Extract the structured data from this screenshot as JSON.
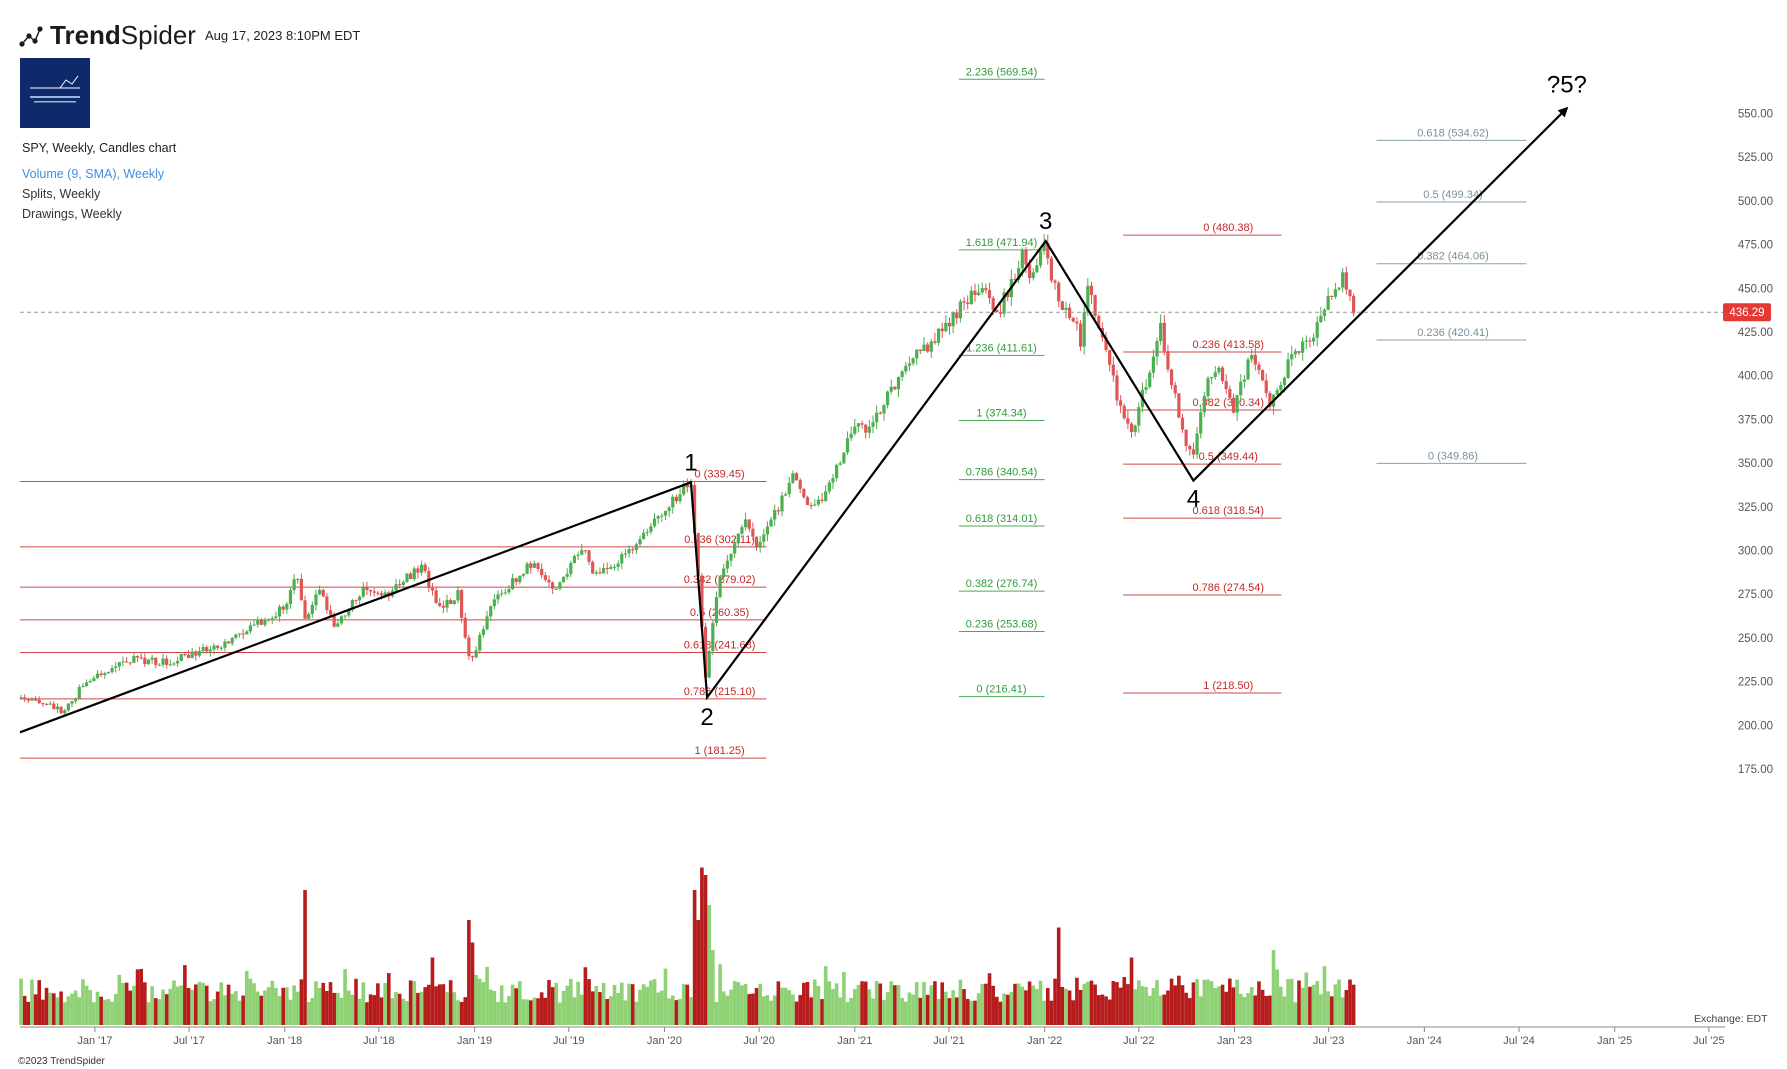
{
  "header": {
    "brand_light": "Trend",
    "brand_bold": "Spider",
    "timestamp": "Aug 17, 2023 8:10PM EDT",
    "symbol_line": "SPY, Weekly, Candles chart",
    "indicators": [
      "Volume (9, SMA), Weekly",
      "Splits, Weekly",
      "Drawings, Weekly"
    ],
    "copyright": "©2023 TrendSpider",
    "exchange": "Exchange: EDT"
  },
  "colors": {
    "up": "#4caf50",
    "down": "#e05555",
    "vol_up": "#8fd175",
    "vol_down": "#b71c1c",
    "fib_red": "#c62828",
    "fib_green": "#2e9b3a",
    "fib_gray": "#78909c",
    "wave_line": "#000000",
    "price_badge": "#e53935"
  },
  "chart_data": {
    "type": "candlestick",
    "title": "SPY, Weekly, Candles chart",
    "y_axis": {
      "ticks": [
        175,
        200,
        225,
        250,
        275,
        300,
        325,
        350,
        375,
        400,
        425,
        450,
        475,
        500,
        525,
        550
      ],
      "range": [
        163,
        572
      ],
      "position": "right"
    },
    "x_axis": {
      "ticks": [
        "Jan '17",
        "Jul '17",
        "Jan '18",
        "Jul '18",
        "Jan '19",
        "Jul '19",
        "Jan '20",
        "Jul '20",
        "Jan '21",
        "Jul '21",
        "Jan '22",
        "Jul '22",
        "Jan '23",
        "Jul '23",
        "Jan '24",
        "Jul '24",
        "Jan '25",
        "Jul '25"
      ],
      "tick_dates": [
        "2017-01-01",
        "2017-07-01",
        "2018-01-01",
        "2018-07-01",
        "2019-01-01",
        "2019-07-01",
        "2020-01-01",
        "2020-07-01",
        "2021-01-01",
        "2021-07-01",
        "2022-01-01",
        "2022-07-01",
        "2023-01-01",
        "2023-07-01",
        "2024-01-01",
        "2024-07-01",
        "2025-01-01",
        "2025-07-01"
      ],
      "range": [
        "2016-08-10",
        "2025-08-01"
      ]
    },
    "last_price": 436.29,
    "price_anchors": [
      [
        "2016-08-12",
        216
      ],
      [
        "2016-11-04",
        208
      ],
      [
        "2016-12-16",
        226
      ],
      [
        "2017-03-03",
        238
      ],
      [
        "2017-05-19",
        236
      ],
      [
        "2017-08-11",
        245
      ],
      [
        "2017-09-01",
        246
      ],
      [
        "2017-12-29",
        267
      ],
      [
        "2018-01-26",
        286
      ],
      [
        "2018-02-09",
        261
      ],
      [
        "2018-03-09",
        278
      ],
      [
        "2018-04-06",
        258
      ],
      [
        "2018-06-08",
        279
      ],
      [
        "2018-07-06",
        273
      ],
      [
        "2018-09-21",
        291
      ],
      [
        "2018-10-26",
        266
      ],
      [
        "2018-11-30",
        275
      ],
      [
        "2018-12-24",
        234
      ],
      [
        "2019-02-01",
        270
      ],
      [
        "2019-04-26",
        294
      ],
      [
        "2019-06-03",
        275
      ],
      [
        "2019-07-26",
        302
      ],
      [
        "2019-08-23",
        285
      ],
      [
        "2019-10-04",
        293
      ],
      [
        "2019-12-27",
        322
      ],
      [
        "2020-02-21",
        339
      ],
      [
        "2020-03-20",
        229
      ],
      [
        "2020-04-17",
        286
      ],
      [
        "2020-06-05",
        319
      ],
      [
        "2020-06-26",
        300
      ],
      [
        "2020-09-04",
        342
      ],
      [
        "2020-09-25",
        328
      ],
      [
        "2020-10-30",
        326
      ],
      [
        "2020-12-31",
        373
      ],
      [
        "2021-01-29",
        370
      ],
      [
        "2021-04-30",
        417
      ],
      [
        "2021-05-14",
        415
      ],
      [
        "2021-09-03",
        453
      ],
      [
        "2021-10-01",
        434
      ],
      [
        "2021-11-19",
        468
      ],
      [
        "2021-12-03",
        453
      ],
      [
        "2021-12-31",
        474
      ],
      [
        "2022-01-28",
        441
      ],
      [
        "2022-03-04",
        432
      ],
      [
        "2022-03-11",
        420
      ],
      [
        "2022-03-25",
        452
      ],
      [
        "2022-05-20",
        389
      ],
      [
        "2022-06-17",
        366
      ],
      [
        "2022-08-12",
        427
      ],
      [
        "2022-09-30",
        357
      ],
      [
        "2022-10-14",
        357
      ],
      [
        "2022-11-11",
        398
      ],
      [
        "2022-12-02",
        406
      ],
      [
        "2022-12-30",
        382
      ],
      [
        "2023-02-03",
        412
      ],
      [
        "2023-03-10",
        385
      ],
      [
        "2023-04-28",
        415
      ],
      [
        "2023-05-26",
        420
      ],
      [
        "2023-06-30",
        443
      ],
      [
        "2023-07-28",
        456
      ],
      [
        "2023-08-18",
        436.29
      ]
    ],
    "volume_spikes": [
      [
        "2018-02-09",
        170
      ],
      [
        "2018-12-21",
        150
      ],
      [
        "2018-10-12",
        125
      ],
      [
        "2018-12-28",
        135
      ],
      [
        "2020-02-28",
        170
      ],
      [
        "2020-03-06",
        150
      ],
      [
        "2020-03-13",
        185
      ],
      [
        "2020-03-20",
        180
      ],
      [
        "2020-03-27",
        160
      ],
      [
        "2020-04-03",
        130
      ],
      [
        "2022-01-28",
        145
      ],
      [
        "2022-06-17",
        125
      ],
      [
        "2023-03-17",
        130
      ]
    ],
    "wave_labels": [
      {
        "label": "1",
        "date": "2020-02-21",
        "price": 339
      },
      {
        "label": "2",
        "date": "2020-03-23",
        "price": 215
      },
      {
        "label": "3",
        "date": "2022-01-03",
        "price": 477
      },
      {
        "label": "4",
        "date": "2022-10-14",
        "price": 340
      },
      {
        "label": "?5?",
        "date": "2024-10-01",
        "price": 555
      }
    ],
    "wave_path": [
      {
        "date": "2016-08-10",
        "price": 196
      },
      {
        "date": "2020-02-21",
        "price": 339
      },
      {
        "date": "2020-03-23",
        "price": 216
      },
      {
        "date": "2022-01-03",
        "price": 477
      },
      {
        "date": "2022-10-14",
        "price": 340
      },
      {
        "date": "2024-10-01",
        "price": 553
      }
    ],
    "fib_sets": [
      {
        "color_key": "fib_red",
        "line_x_range": [
          "2016-08-10",
          "2020-07-15"
        ],
        "label_date": "2020-04-16",
        "levels": [
          {
            "label": "0 (339.45)",
            "price": 339.45
          },
          {
            "label": "0.236 (302.11)",
            "price": 302.11
          },
          {
            "label": "0.382 (279.02)",
            "price": 279.02
          },
          {
            "label": "0.5 (260.35)",
            "price": 260.35
          },
          {
            "label": "0.618 (241.68)",
            "price": 241.68
          },
          {
            "label": "0.786 (215.10)",
            "price": 215.1
          },
          {
            "label": "1 (181.25)",
            "price": 181.25
          }
        ]
      },
      {
        "color_key": "fib_green",
        "line_x_range": [
          "2021-07-20",
          "2022-01-01"
        ],
        "label_date": "2021-10-10",
        "levels": [
          {
            "label": "2.236 (569.54)",
            "price": 569.54
          },
          {
            "label": "1.618 (471.94)",
            "price": 471.94
          },
          {
            "label": "1.236 (411.61)",
            "price": 411.61
          },
          {
            "label": "1 (374.34)",
            "price": 374.34
          },
          {
            "label": "0.786 (340.54)",
            "price": 340.54
          },
          {
            "label": "0.618 (314.01)",
            "price": 314.01
          },
          {
            "label": "0.382 (276.74)",
            "price": 276.74
          },
          {
            "label": "0.236 (253.68)",
            "price": 253.68
          },
          {
            "label": "0 (216.41)",
            "price": 216.41
          }
        ]
      },
      {
        "color_key": "fib_red",
        "line_x_range": [
          "2022-06-01",
          "2023-04-01"
        ],
        "label_date": "2022-12-20",
        "levels": [
          {
            "label": "0 (480.38)",
            "price": 480.38
          },
          {
            "label": "0.236 (413.58)",
            "price": 413.58
          },
          {
            "label": "0.382 (380.34)",
            "price": 380.34
          },
          {
            "label": "0.5 (349.44)",
            "price": 349.44
          },
          {
            "label": "0.618 (318.54)",
            "price": 318.54
          },
          {
            "label": "0.786 (274.54)",
            "price": 274.54
          },
          {
            "label": "1 (218.50)",
            "price": 218.5
          }
        ]
      },
      {
        "color_key": "fib_gray",
        "line_x_range": [
          "2023-10-01",
          "2024-07-15"
        ],
        "label_date": "2024-02-25",
        "levels": [
          {
            "label": "0.618 (534.62)",
            "price": 534.62
          },
          {
            "label": "0.5 (499.34)",
            "price": 499.34
          },
          {
            "label": "0.382 (464.06)",
            "price": 464.06
          },
          {
            "label": "0.236 (420.41)",
            "price": 420.41
          },
          {
            "label": "0 (349.86)",
            "price": 349.86
          }
        ]
      }
    ],
    "legend": "none",
    "grid": false
  }
}
